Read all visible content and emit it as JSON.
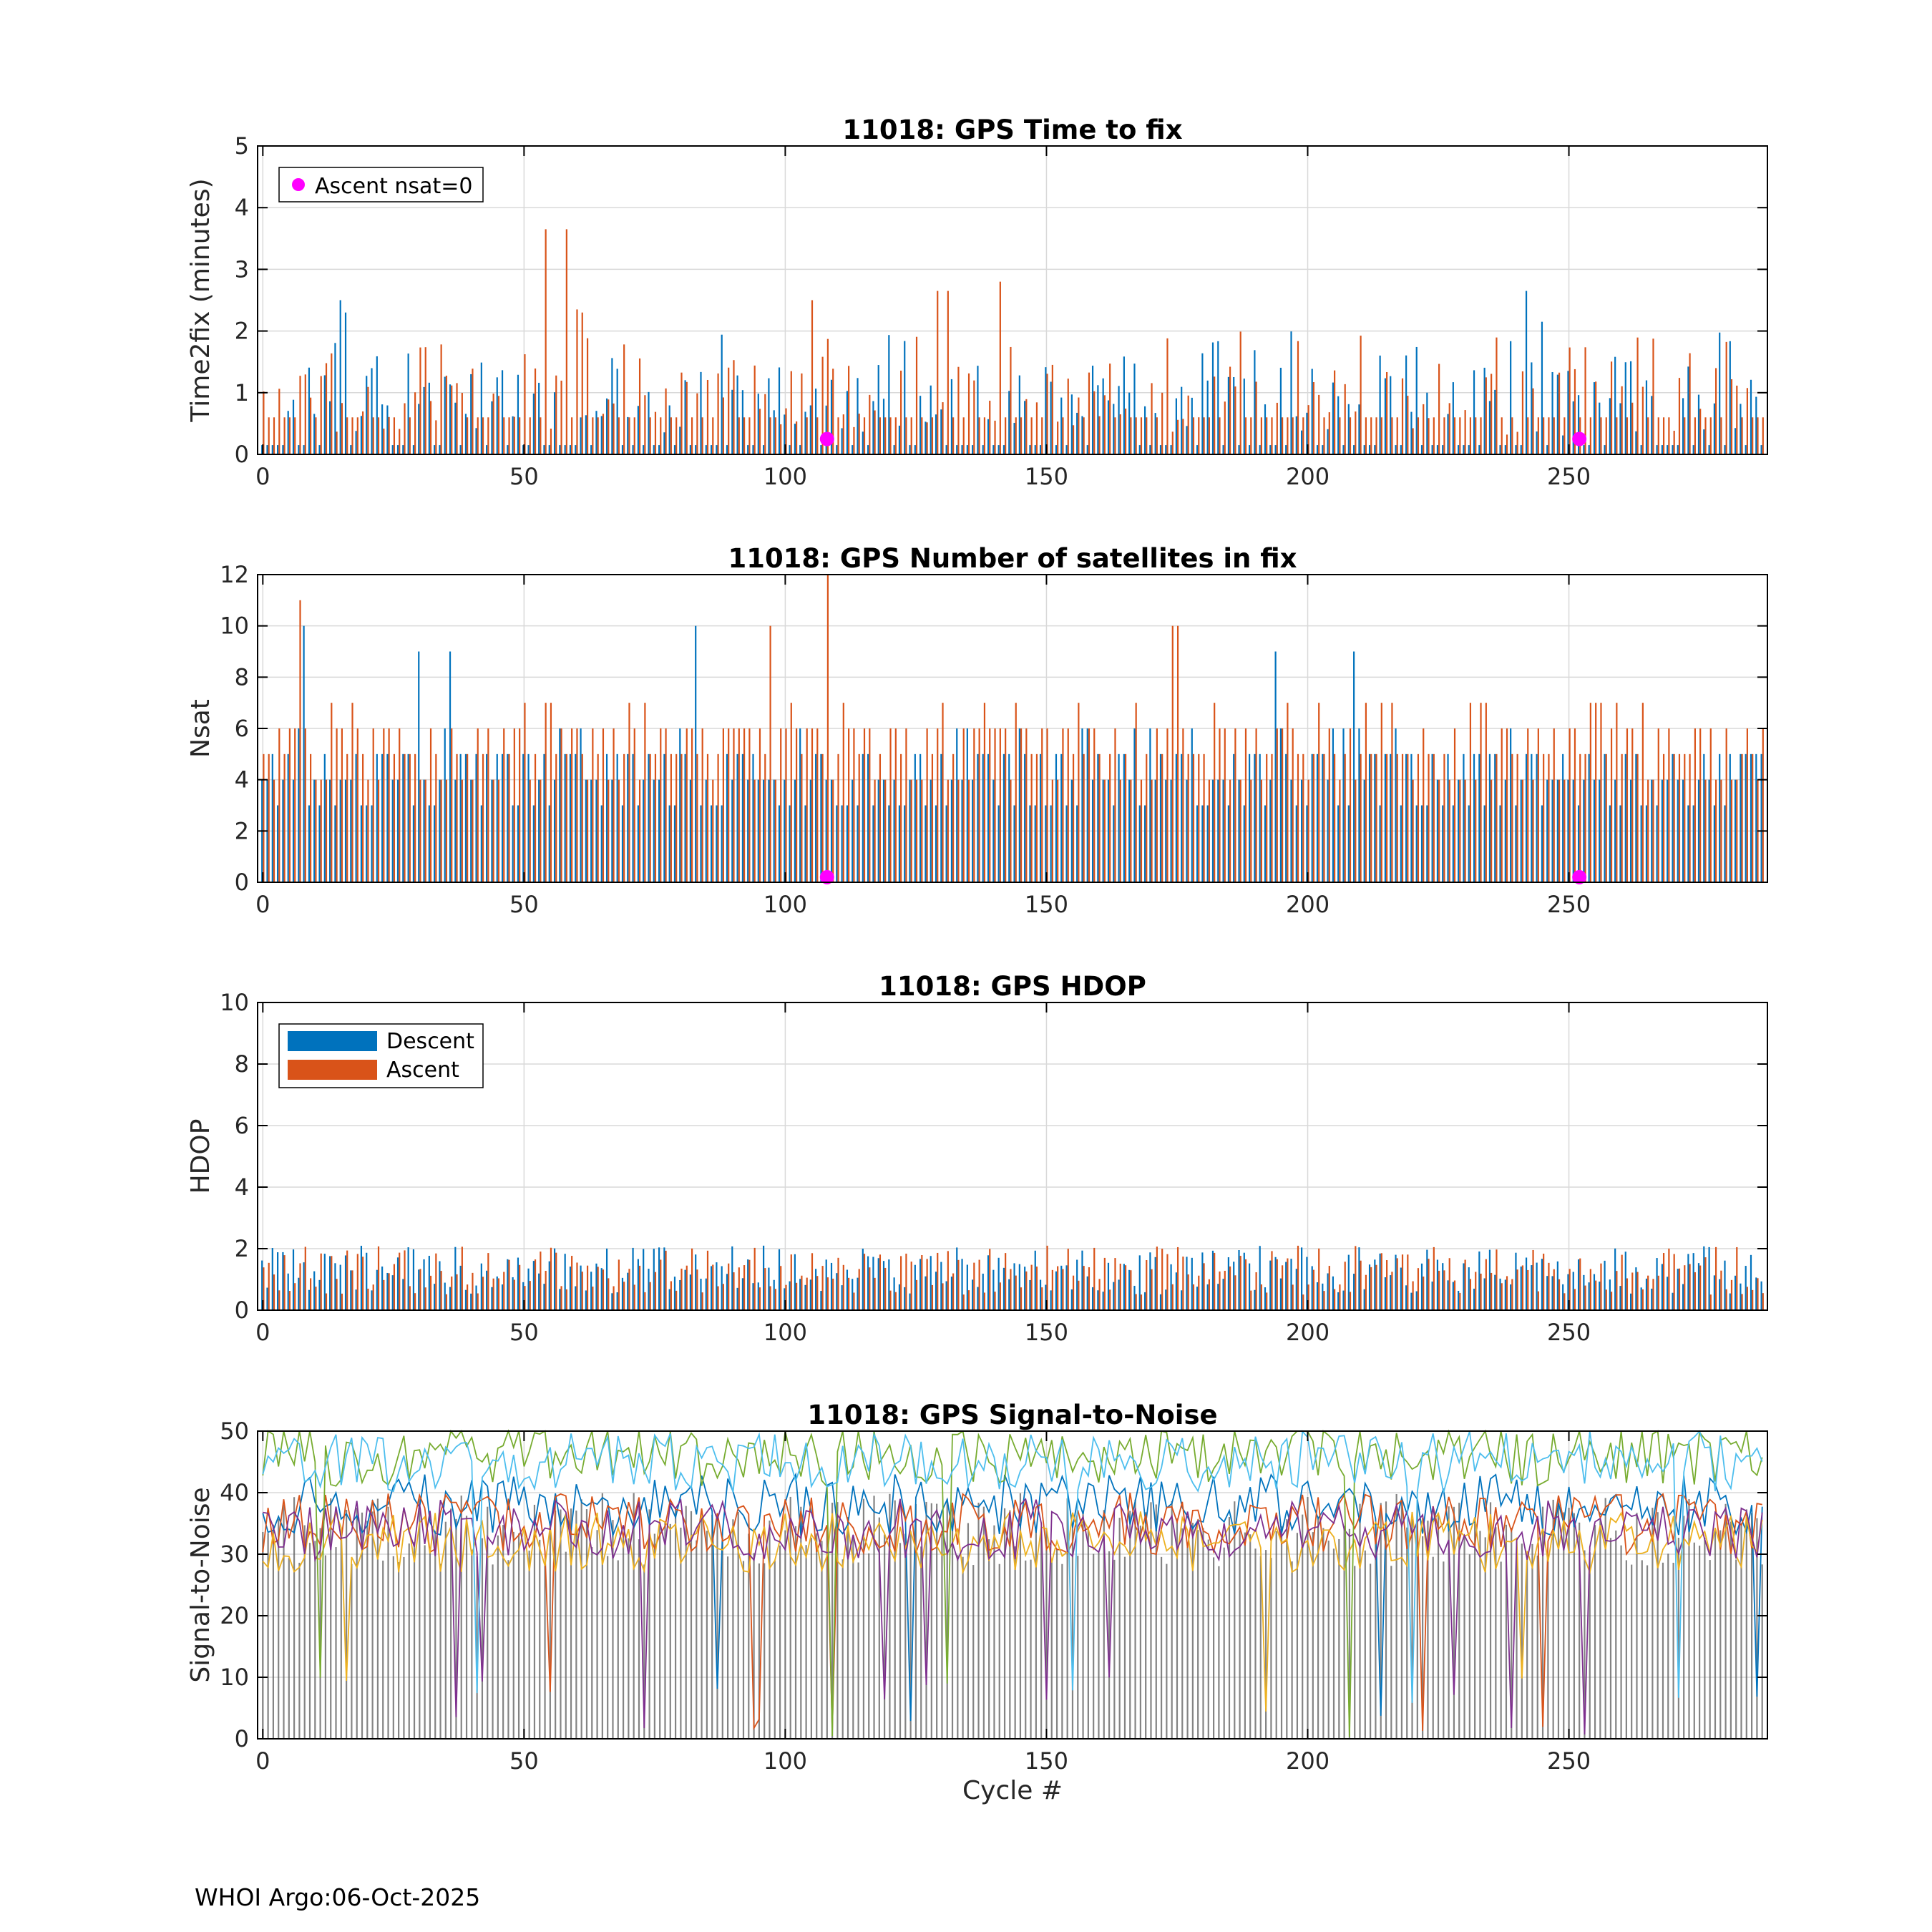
{
  "footer": "WHOI Argo:06-Oct-2025",
  "colors": {
    "descent": "#0072BD",
    "ascent": "#D95319",
    "nsat_zero_marker": "#FF00FF",
    "snr_lines": [
      "#0072BD",
      "#D95319",
      "#EDB120",
      "#7E2F8E",
      "#77AC30",
      "#4DBEEE"
    ]
  },
  "chart_data": [
    {
      "type": "bar",
      "title": "11018: GPS Time to fix",
      "xlabel": "",
      "ylabel": "Time2fix (minutes)",
      "xlim": [
        -1,
        288
      ],
      "ylim": [
        0,
        5
      ],
      "xticks": [
        0,
        50,
        100,
        150,
        200,
        250
      ],
      "yticks": [
        0,
        1,
        2,
        3,
        4,
        5
      ],
      "grid": true,
      "legend": {
        "location": "top-left",
        "entries": [
          "Ascent nsat=0"
        ]
      },
      "series": [
        {
          "name": "Descent",
          "color": "#0072BD",
          "typical": 0.15
        },
        {
          "name": "Ascent",
          "color": "#D95319",
          "typical": 0.6
        }
      ],
      "peaks": [
        {
          "x": 15,
          "series": "Descent",
          "y": 2.5
        },
        {
          "x": 16,
          "series": "Descent",
          "y": 2.3
        },
        {
          "x": 54,
          "series": "Ascent",
          "y": 3.65
        },
        {
          "x": 58,
          "series": "Ascent",
          "y": 3.65
        },
        {
          "x": 60,
          "series": "Ascent",
          "y": 2.35
        },
        {
          "x": 61,
          "series": "Ascent",
          "y": 2.3
        },
        {
          "x": 105,
          "series": "Ascent",
          "y": 2.5
        },
        {
          "x": 129,
          "series": "Ascent",
          "y": 2.65
        },
        {
          "x": 131,
          "series": "Ascent",
          "y": 2.65
        },
        {
          "x": 141,
          "series": "Ascent",
          "y": 2.8
        },
        {
          "x": 242,
          "series": "Descent",
          "y": 2.65
        },
        {
          "x": 245,
          "series": "Descent",
          "y": 2.15
        }
      ],
      "markers": {
        "name": "Ascent nsat=0",
        "x": [
          108,
          252
        ],
        "y": [
          0.25,
          0.25
        ]
      }
    },
    {
      "type": "bar",
      "title": "11018: GPS Number of satellites in fix",
      "xlabel": "",
      "ylabel": "Nsat",
      "xlim": [
        -1,
        288
      ],
      "ylim": [
        0,
        12
      ],
      "xticks": [
        0,
        50,
        100,
        150,
        200,
        250
      ],
      "yticks": [
        0,
        2,
        4,
        6,
        8,
        10,
        12
      ],
      "grid": true,
      "series": [
        {
          "name": "Descent",
          "color": "#0072BD",
          "typical": 4
        },
        {
          "name": "Ascent",
          "color": "#D95319",
          "typical": 5
        }
      ],
      "peaks": [
        {
          "x": 7,
          "series": "Ascent",
          "y": 11
        },
        {
          "x": 8,
          "series": "Descent",
          "y": 10
        },
        {
          "x": 83,
          "series": "Descent",
          "y": 10
        },
        {
          "x": 97,
          "series": "Ascent",
          "y": 10
        },
        {
          "x": 108,
          "series": "Ascent",
          "y": 12
        },
        {
          "x": 174,
          "series": "Ascent",
          "y": 10
        },
        {
          "x": 175,
          "series": "Ascent",
          "y": 10
        },
        {
          "x": 30,
          "series": "Descent",
          "y": 9
        },
        {
          "x": 36,
          "series": "Descent",
          "y": 9
        },
        {
          "x": 194,
          "series": "Descent",
          "y": 9
        },
        {
          "x": 209,
          "series": "Descent",
          "y": 9
        }
      ],
      "markers": {
        "name": "Ascent nsat=0",
        "x": [
          108,
          252
        ],
        "y": [
          0.2,
          0.2
        ]
      }
    },
    {
      "type": "bar",
      "title": "11018: GPS HDOP",
      "xlabel": "",
      "ylabel": "HDOP",
      "xlim": [
        -1,
        288
      ],
      "ylim": [
        0,
        10
      ],
      "xticks": [
        0,
        50,
        100,
        150,
        200,
        250
      ],
      "yticks": [
        0,
        2,
        4,
        6,
        8,
        10
      ],
      "grid": true,
      "legend": {
        "location": "top-left",
        "entries": [
          "Descent",
          "Ascent"
        ]
      },
      "series": [
        {
          "name": "Descent",
          "color": "#0072BD",
          "typical": 1.3
        },
        {
          "name": "Ascent",
          "color": "#D95319",
          "typical": 1.3
        }
      ]
    },
    {
      "type": "line",
      "title": "11018: GPS Signal-to-Noise",
      "xlabel": "Cycle #",
      "ylabel": "Signal-to-Noise",
      "xlim": [
        -1,
        288
      ],
      "ylim": [
        0,
        50
      ],
      "xticks": [
        0,
        50,
        100,
        150,
        200,
        250
      ],
      "yticks": [
        0,
        10,
        20,
        30,
        40,
        50
      ],
      "grid": true,
      "series_levels": [
        {
          "color": "#0072BD",
          "typical": 38
        },
        {
          "color": "#D95319",
          "typical": 35
        },
        {
          "color": "#EDB120",
          "typical": 32
        },
        {
          "color": "#7E2F8E",
          "typical": 34
        },
        {
          "color": "#77AC30",
          "typical": 46
        },
        {
          "color": "#4DBEEE",
          "typical": 45
        }
      ]
    }
  ]
}
